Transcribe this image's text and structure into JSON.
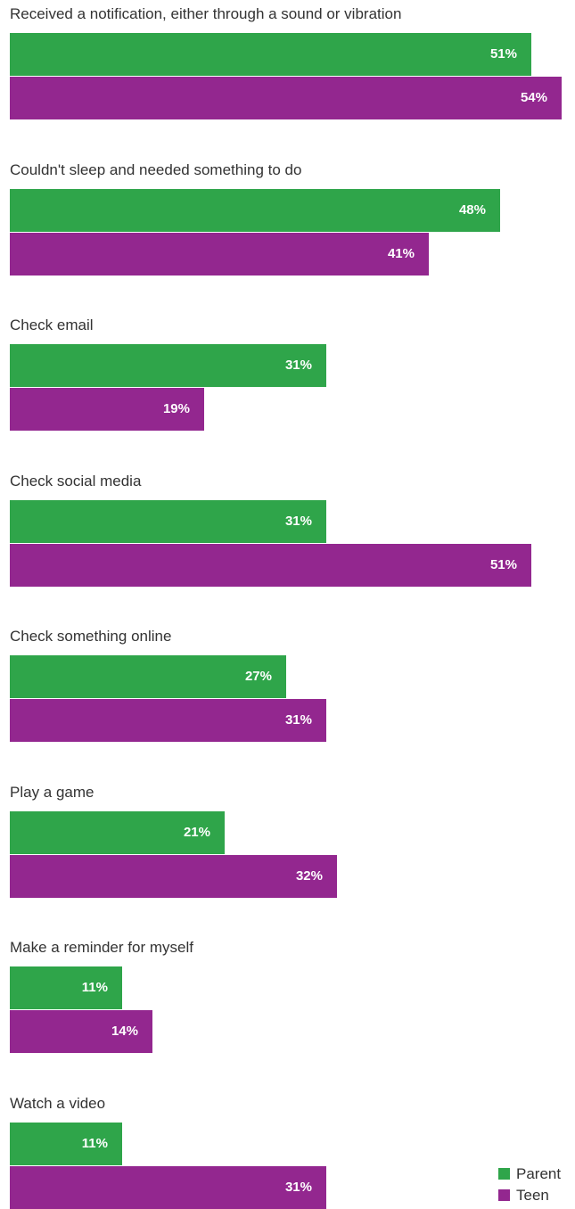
{
  "chart_data": {
    "type": "bar",
    "orientation": "horizontal",
    "categories": [
      "Received a notification, either through a sound or vibration",
      "Couldn't sleep and needed something to do",
      "Check email",
      "Check social media",
      "Check something online",
      "Play a game",
      "Make a reminder for myself",
      "Watch a video"
    ],
    "series": [
      {
        "name": "Parent",
        "color": "#2fa54a",
        "values": [
          51,
          48,
          31,
          31,
          27,
          21,
          11,
          11
        ],
        "labels": [
          "51%",
          "48%",
          "31%",
          "31%",
          "27%",
          "21%",
          "11%",
          "11%"
        ]
      },
      {
        "name": "Teen",
        "color": "#93278f",
        "values": [
          54,
          41,
          19,
          51,
          31,
          32,
          14,
          31
        ],
        "labels": [
          "54%",
          "41%",
          "19%",
          "51%",
          "31%",
          "32%",
          "14%",
          "31%"
        ]
      }
    ],
    "unit": "%",
    "xlim": [
      0,
      54
    ],
    "grid": false,
    "legend_position": "bottom-right"
  }
}
